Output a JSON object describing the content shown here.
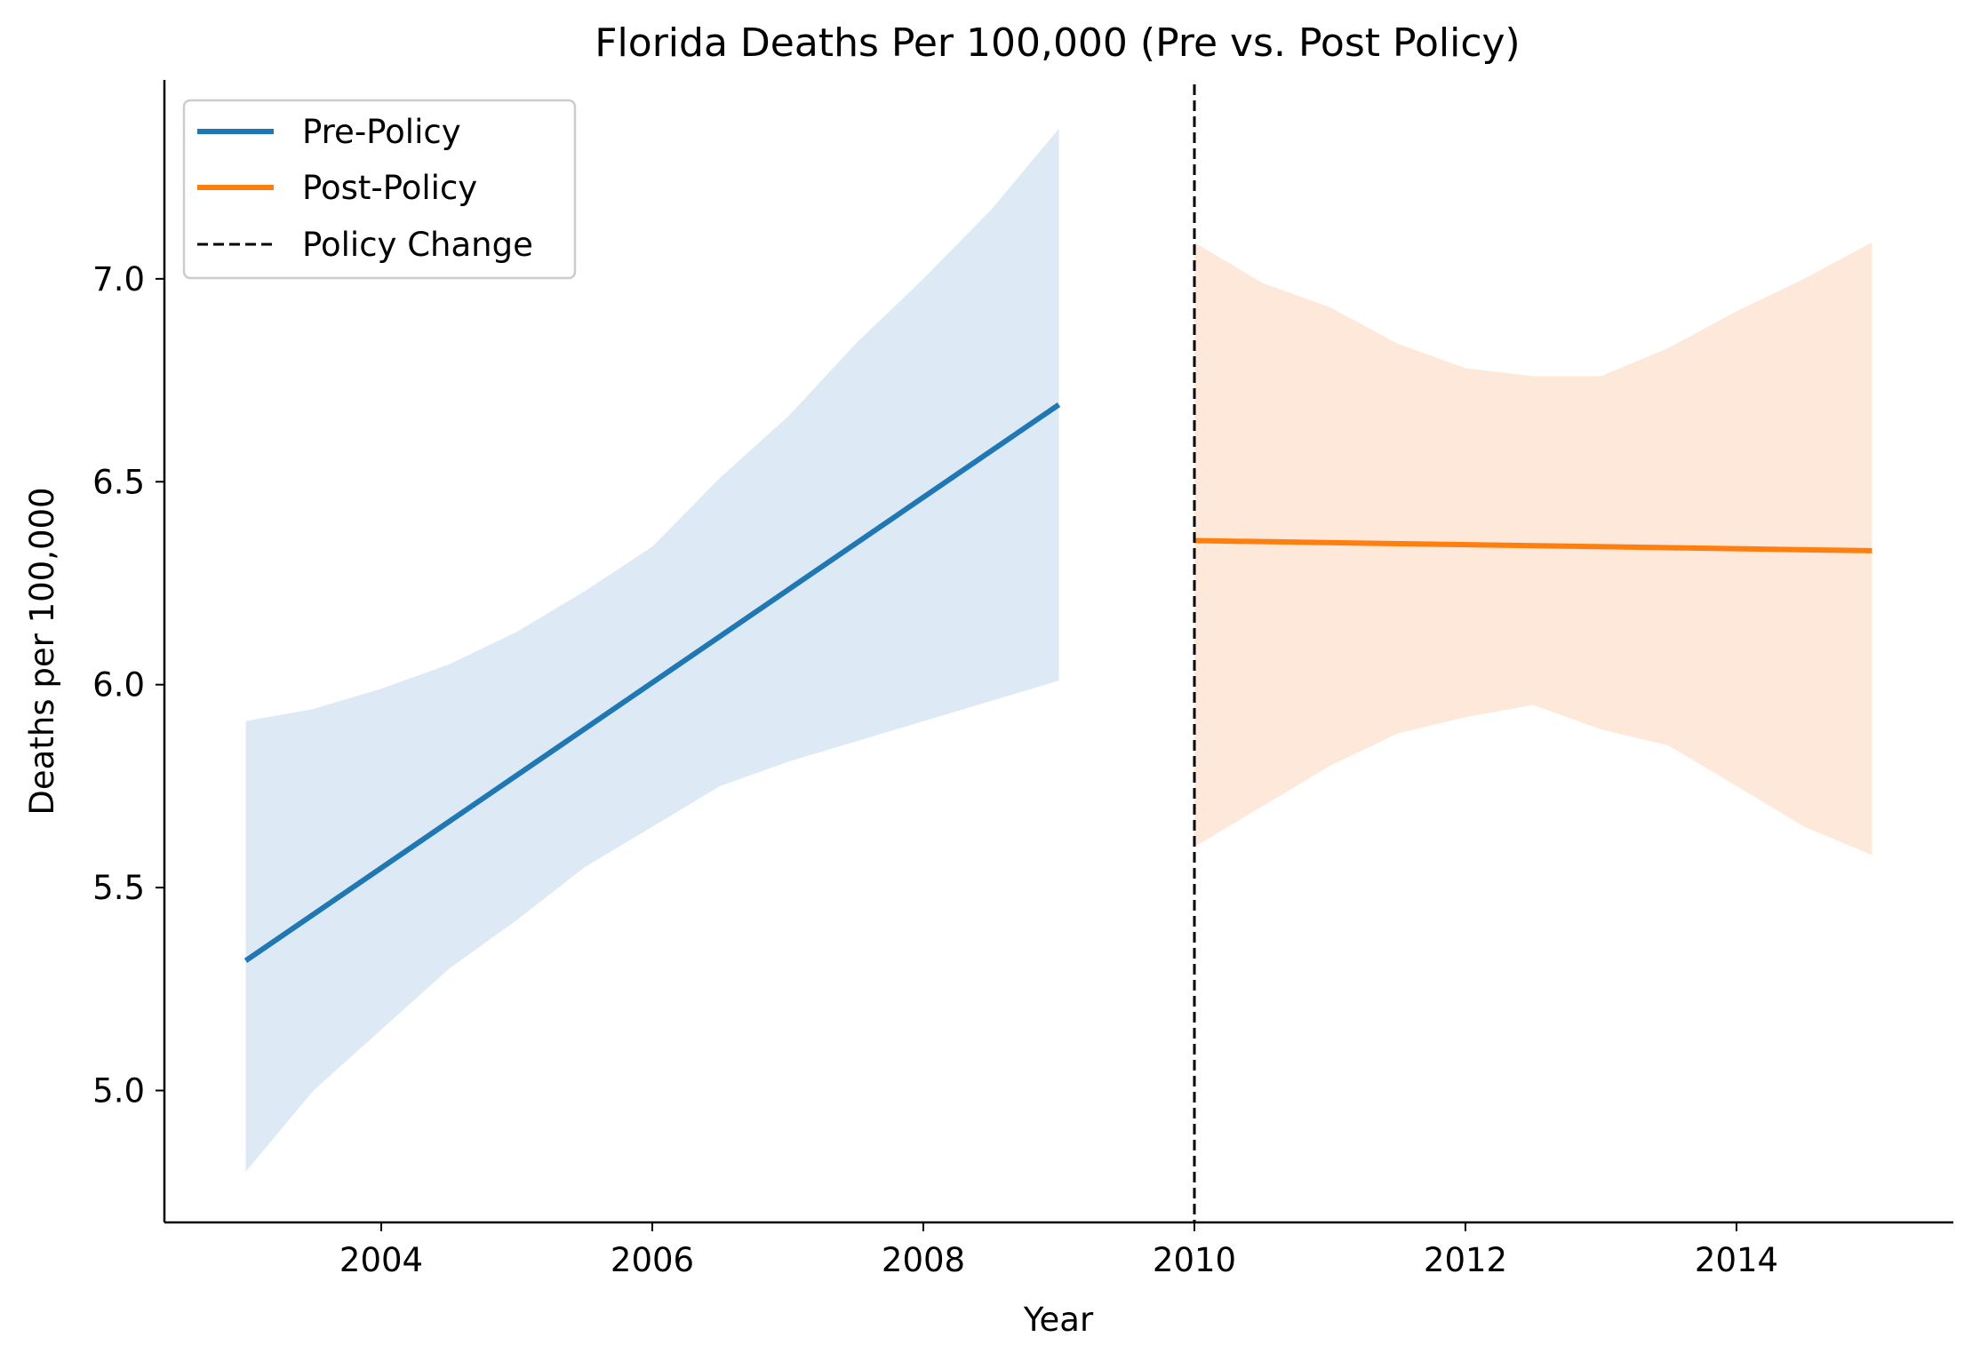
{
  "chart_data": {
    "type": "line",
    "title": "Florida Deaths Per 100,000 (Pre vs. Post Policy)",
    "xlabel": "Year",
    "ylabel": "Deaths per 100,000",
    "xlim": [
      2002.4,
      2015.6
    ],
    "ylim": [
      4.675,
      7.49
    ],
    "xticks": [
      2004,
      2006,
      2008,
      2010,
      2012,
      2014
    ],
    "xtick_labels": [
      "2004",
      "2006",
      "2008",
      "2010",
      "2012",
      "2014"
    ],
    "yticks": [
      5.0,
      5.5,
      6.0,
      6.5,
      7.0
    ],
    "ytick_labels": [
      "5.0",
      "5.5",
      "6.0",
      "6.5",
      "7.0"
    ],
    "grid": false,
    "legend_position": "top-left",
    "series": [
      {
        "name": "Pre-Policy",
        "color": "#1f77b4",
        "band_color": "#dde9f4",
        "x": [
          2003,
          2009
        ],
        "y": [
          5.32,
          6.69
        ],
        "band_x": [
          2003.0,
          2003.5,
          2004.0,
          2004.5,
          2005.0,
          2005.5,
          2006.0,
          2006.5,
          2007.0,
          2007.5,
          2008.0,
          2008.5,
          2009.0
        ],
        "band_upper": [
          5.91,
          5.94,
          5.99,
          6.05,
          6.13,
          6.23,
          6.34,
          6.51,
          6.66,
          6.84,
          7.0,
          7.17,
          7.37
        ],
        "band_lower": [
          4.8,
          5.0,
          5.15,
          5.3,
          5.42,
          5.55,
          5.65,
          5.75,
          5.81,
          5.86,
          5.91,
          5.96,
          6.01
        ]
      },
      {
        "name": "Post-Policy",
        "color": "#ff7f0e",
        "band_color": "#fee8da",
        "x": [
          2010,
          2015
        ],
        "y": [
          6.355,
          6.33
        ],
        "band_x": [
          2010.0,
          2010.5,
          2011.0,
          2011.5,
          2012.0,
          2012.5,
          2013.0,
          2013.5,
          2014.0,
          2014.5,
          2015.0
        ],
        "band_upper": [
          7.09,
          6.99,
          6.93,
          6.84,
          6.78,
          6.76,
          6.76,
          6.83,
          6.92,
          7.0,
          7.09
        ],
        "band_lower": [
          5.6,
          5.7,
          5.8,
          5.88,
          5.92,
          5.95,
          5.89,
          5.85,
          5.75,
          5.65,
          5.58
        ]
      }
    ],
    "reference_line": {
      "name": "Policy Change",
      "x": 2010,
      "color": "#000000",
      "style": "dashed"
    }
  }
}
